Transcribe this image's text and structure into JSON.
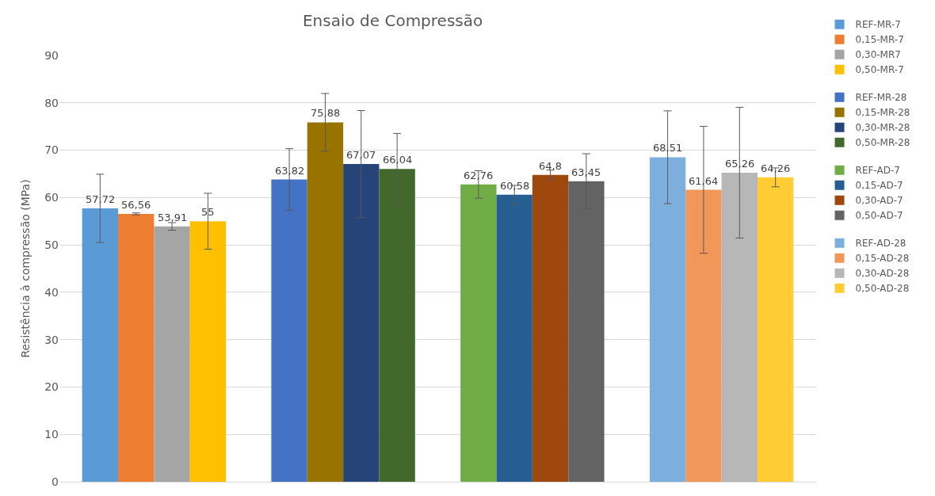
{
  "chart_data": {
    "type": "bar",
    "title": "Ensaio de Compressão",
    "ylabel": "Resistência à compressão (MPa)",
    "categories": [
      null,
      null,
      null,
      null
    ],
    "series": [
      {
        "name": "REF-MR-7",
        "color": "#5b9bd5",
        "values": [
          57.72,
          null,
          null,
          null
        ],
        "errors": [
          7.2,
          null,
          null,
          null
        ],
        "value_labels": [
          "57,72",
          null,
          null,
          null
        ]
      },
      {
        "name": "0,15-MR-7",
        "color": "#ed7d31",
        "values": [
          56.56,
          null,
          null,
          null
        ],
        "errors": [
          0.2,
          null,
          null,
          null
        ],
        "value_labels": [
          "56,56",
          null,
          null,
          null
        ]
      },
      {
        "name": "0,30-MR7",
        "color": "#a5a5a5",
        "values": [
          53.91,
          null,
          null,
          null
        ],
        "errors": [
          0.8,
          null,
          null,
          null
        ],
        "value_labels": [
          "53,91",
          null,
          null,
          null
        ]
      },
      {
        "name": "0,50-MR-7",
        "color": "#ffc000",
        "values": [
          55,
          null,
          null,
          null
        ],
        "errors": [
          5.9,
          null,
          null,
          null
        ],
        "value_labels": [
          "55",
          null,
          null,
          null
        ]
      },
      {
        "name": "REF-MR-28",
        "color": "#4472c4",
        "values": [
          null,
          63.82,
          null,
          null
        ],
        "errors": [
          null,
          6.5,
          null,
          null
        ],
        "value_labels": [
          null,
          "63,82",
          null,
          null
        ]
      },
      {
        "name": "0,15-MR-28",
        "color": "#997300",
        "values": [
          null,
          75.88,
          null,
          null
        ],
        "errors": [
          null,
          6.1,
          null,
          null
        ],
        "value_labels": [
          null,
          "75,88",
          null,
          null
        ]
      },
      {
        "name": "0,30-MR-28",
        "color": "#264478",
        "values": [
          null,
          67.07,
          null,
          null
        ],
        "errors": [
          null,
          11.3,
          null,
          null
        ],
        "value_labels": [
          null,
          "67,07",
          null,
          null
        ]
      },
      {
        "name": "0,50-MR-28",
        "color": "#43682b",
        "values": [
          null,
          66.04,
          null,
          null
        ],
        "errors": [
          null,
          7.5,
          null,
          null
        ],
        "value_labels": [
          null,
          "66,04",
          null,
          null
        ]
      },
      {
        "name": "REF-AD-7",
        "color": "#70ad47",
        "values": [
          null,
          null,
          62.76,
          null
        ],
        "errors": [
          null,
          null,
          2.9,
          null
        ],
        "value_labels": [
          null,
          null,
          "62,76",
          null
        ]
      },
      {
        "name": "0,15-AD-7",
        "color": "#255e91",
        "values": [
          null,
          null,
          60.58,
          null
        ],
        "errors": [
          null,
          null,
          2.0,
          null
        ],
        "value_labels": [
          null,
          null,
          "60,58",
          null
        ]
      },
      {
        "name": "0,30-AD-7",
        "color": "#9e480e",
        "values": [
          null,
          null,
          64.8,
          null
        ],
        "errors": [
          null,
          null,
          1.0,
          null
        ],
        "value_labels": [
          null,
          null,
          "64,8",
          null
        ]
      },
      {
        "name": "0,50-AD-7",
        "color": "#636363",
        "values": [
          null,
          null,
          63.45,
          null
        ],
        "errors": [
          null,
          null,
          5.8,
          null
        ],
        "value_labels": [
          null,
          null,
          "63,45",
          null
        ]
      },
      {
        "name": "REF-AD-28",
        "color": "#7cafdd",
        "values": [
          null,
          null,
          null,
          68.51
        ],
        "errors": [
          null,
          null,
          null,
          9.8
        ],
        "value_labels": [
          null,
          null,
          null,
          "68,51"
        ]
      },
      {
        "name": "0,15-AD-28",
        "color": "#f1975a",
        "values": [
          null,
          null,
          null,
          61.64
        ],
        "errors": [
          null,
          null,
          null,
          13.4
        ],
        "value_labels": [
          null,
          null,
          null,
          "61,64"
        ]
      },
      {
        "name": "0,30-AD-28",
        "color": "#b7b7b7",
        "values": [
          null,
          null,
          null,
          65.26
        ],
        "errors": [
          null,
          null,
          null,
          13.8
        ],
        "value_labels": [
          null,
          null,
          null,
          "65,26"
        ]
      },
      {
        "name": "0,50-AD-28",
        "color": "#ffcd33",
        "values": [
          null,
          null,
          null,
          64.26
        ],
        "errors": [
          null,
          null,
          null,
          2.0
        ],
        "value_labels": [
          null,
          null,
          null,
          "64,26"
        ]
      }
    ],
    "ylim": [
      0,
      90
    ],
    "yticks": [
      0,
      10,
      20,
      30,
      40,
      50,
      60,
      70,
      80,
      90
    ],
    "grid": "y",
    "legend": "right"
  }
}
